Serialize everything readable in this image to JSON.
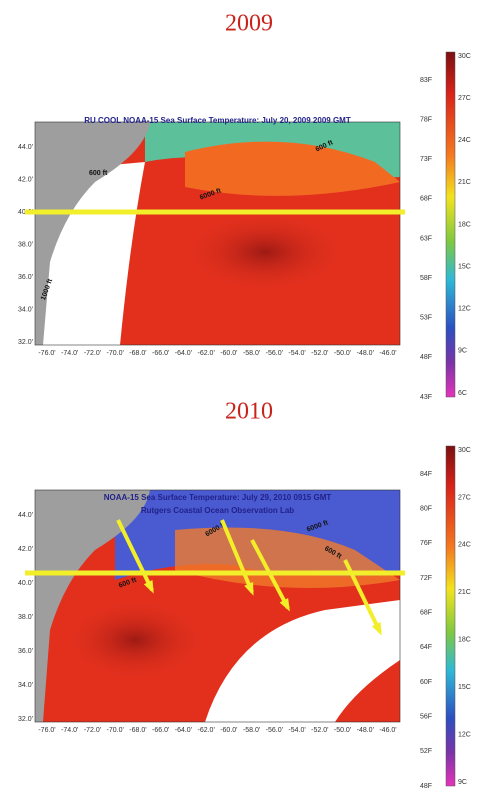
{
  "panels": [
    {
      "year": "2009",
      "title": [
        "RU COOL  NOAA-15  Sea Surface Temperature:  July 20, 2009 2009 GMT"
      ],
      "lat_labels": [
        "44.0'",
        "42.0'",
        "40.0'",
        "38.0'",
        "36.0'",
        "34.0'",
        "32.0'"
      ],
      "lon_labels": [
        "-76.0'",
        "-74.0'",
        "-72.0'",
        "-70.0'",
        "-68.0'",
        "-66.0'",
        "-64.0'",
        "-62.0'",
        "-60.0'",
        "-58.0'",
        "-56.0'",
        "-54.0'",
        "-52.0'",
        "-50.0'",
        "-48.0'",
        "-46.0'"
      ],
      "colorbar_f": [
        "83F",
        "78F",
        "73F",
        "68F",
        "63F",
        "58F",
        "53F",
        "48F",
        "43F"
      ],
      "colorbar_c": [
        "30C",
        "27C",
        "24C",
        "21C",
        "18C",
        "15C",
        "12C",
        "9C",
        "6C"
      ],
      "contours": [
        "600 ft",
        "6000 ft",
        "600 ft",
        "1000 ft"
      ]
    },
    {
      "year": "2010",
      "title": [
        "NOAA-15 Sea Surface Temperature:  July 29, 2010 0915 GMT",
        "Rutgers Coastal Ocean Observation Lab"
      ],
      "lat_labels": [
        "44.0'",
        "42.0'",
        "40.0'",
        "38.0'",
        "36.0'",
        "34.0'",
        "32.0'"
      ],
      "lon_labels": [
        "-76.0'",
        "-74.0'",
        "-72.0'",
        "-70.0'",
        "-68.0'",
        "-66.0'",
        "-64.0'",
        "-62.0'",
        "-60.0'",
        "-58.0'",
        "-56.0'",
        "-54.0'",
        "-52.0'",
        "-50.0'",
        "-48.0'",
        "-46.0'"
      ],
      "colorbar_f": [
        "84F",
        "80F",
        "76F",
        "72F",
        "68F",
        "64F",
        "60F",
        "56F",
        "52F",
        "48F"
      ],
      "colorbar_c": [
        "30C",
        "27C",
        "24C",
        "21C",
        "18C",
        "15C",
        "12C",
        "9C"
      ],
      "contours": [
        "600 ft",
        "6000 ft",
        "6000 ft",
        "600 ft"
      ]
    }
  ]
}
